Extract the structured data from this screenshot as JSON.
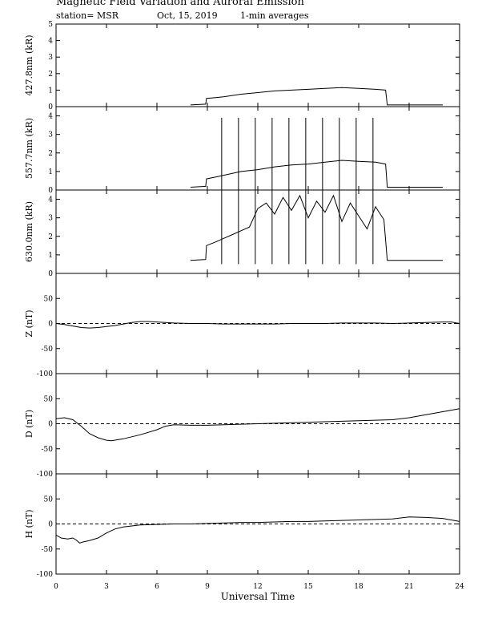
{
  "header": {
    "title": "Magnetic Field Variation and Auroral Emission",
    "station": "station= MSR",
    "date": "Oct, 15, 2019",
    "averaging": "1-min averages"
  },
  "chart_data": {
    "type": "line",
    "xlabel": "Universal Time",
    "xlim": [
      0,
      24
    ],
    "xticks": [
      "0",
      "3",
      "6",
      "9",
      "12",
      "15",
      "18",
      "21",
      "24"
    ],
    "panels": [
      {
        "ylabel": "427.8nm (kR)",
        "ylim": [
          0,
          5
        ],
        "yticks": [
          "0",
          "1",
          "2",
          "3",
          "4",
          "5"
        ],
        "zero_line": false,
        "x": [
          8.0,
          8.9,
          8.95,
          9.5,
          10,
          11,
          12,
          13,
          14,
          15,
          16,
          17,
          18,
          19,
          19.6,
          19.7,
          20.0,
          21,
          22,
          23.0
        ],
        "values": [
          0.1,
          0.15,
          0.5,
          0.55,
          0.6,
          0.75,
          0.85,
          0.95,
          1.0,
          1.05,
          1.1,
          1.15,
          1.1,
          1.05,
          1.0,
          0.1,
          0.1,
          0.1,
          0.1,
          0.1
        ]
      },
      {
        "ylabel": "557.7nm (kR)",
        "ylim": [
          0,
          4.5
        ],
        "yticks": [
          "0",
          "1",
          "2",
          "3",
          "4"
        ],
        "zero_line": false,
        "x": [
          8.0,
          8.9,
          8.95,
          9.5,
          10,
          11,
          12,
          13,
          14,
          15,
          16,
          17,
          18,
          19,
          19.6,
          19.7,
          20.0,
          21,
          22,
          23.0
        ],
        "values": [
          0.15,
          0.2,
          0.6,
          0.7,
          0.8,
          1.0,
          1.1,
          1.25,
          1.35,
          1.4,
          1.5,
          1.6,
          1.55,
          1.5,
          1.4,
          0.15,
          0.15,
          0.15,
          0.15,
          0.15
        ],
        "spikes": [
          9.85,
          10.85,
          11.85,
          12.85,
          13.85,
          14.85,
          15.85,
          16.85,
          17.85,
          18.85
        ],
        "spike_top": 3.9
      },
      {
        "ylabel": "630.0nm (kR)",
        "ylim": [
          0,
          4.5
        ],
        "yticks": [
          "0",
          "1",
          "2",
          "3",
          "4"
        ],
        "zero_line": false,
        "x": [
          8.0,
          8.9,
          8.95,
          9.5,
          10,
          10.5,
          11,
          11.5,
          12,
          12.5,
          13,
          13.5,
          14,
          14.5,
          15,
          15.5,
          16,
          16.5,
          17,
          17.5,
          18,
          18.5,
          19,
          19.5,
          19.7,
          20.0,
          21,
          22,
          23.0
        ],
        "values": [
          0.7,
          0.75,
          1.5,
          1.7,
          1.9,
          2.1,
          2.3,
          2.5,
          3.5,
          3.8,
          3.2,
          4.1,
          3.4,
          4.2,
          3.0,
          3.9,
          3.3,
          4.2,
          2.8,
          3.8,
          3.1,
          2.4,
          3.6,
          2.9,
          0.7,
          0.7,
          0.7,
          0.7,
          0.7
        ],
        "spikes": [
          9.85,
          10.85,
          11.85,
          12.85,
          13.85,
          14.85,
          15.85,
          16.85,
          17.85,
          18.85
        ],
        "spike_top": 4.5,
        "spike_bottom": 0.5
      },
      {
        "ylabel": "Z (nT)",
        "ylim": [
          -100,
          100
        ],
        "yticks": [
          "-100",
          "-50",
          "0",
          "50"
        ],
        "zero_line": true,
        "x": [
          0,
          0.5,
          1,
          1.5,
          2,
          2.5,
          3,
          3.5,
          4,
          4.5,
          5,
          5.5,
          6,
          7,
          8,
          9,
          10,
          11,
          12,
          13,
          14,
          15,
          16,
          17,
          18,
          19,
          20,
          21,
          22,
          23,
          23.5,
          24
        ],
        "values": [
          0,
          -2,
          -5,
          -8,
          -9,
          -8,
          -6,
          -4,
          -1,
          2,
          4,
          4,
          3,
          1,
          0,
          0,
          -1,
          -1,
          -1,
          -1,
          0,
          0,
          0,
          1,
          1,
          1,
          0,
          1,
          2,
          3,
          3,
          0
        ]
      },
      {
        "ylabel": "D (nT)",
        "ylim": [
          -100,
          100
        ],
        "yticks": [
          "-100",
          "-50",
          "0",
          "50"
        ],
        "zero_line": true,
        "x": [
          0,
          0.5,
          1,
          1.5,
          2,
          2.5,
          3,
          3.3,
          4,
          5,
          6,
          6.5,
          7,
          8,
          9,
          10,
          11,
          12,
          13,
          14,
          15,
          16,
          17,
          18,
          19,
          20,
          21,
          22,
          23,
          24
        ],
        "values": [
          10,
          12,
          8,
          -5,
          -20,
          -28,
          -33,
          -34,
          -30,
          -22,
          -12,
          -5,
          -2,
          -3,
          -3,
          -2,
          -1,
          0,
          1,
          2,
          3,
          4,
          5,
          6,
          7,
          8,
          12,
          18,
          24,
          30
        ]
      },
      {
        "ylabel": "H (nT)",
        "ylim": [
          -100,
          100
        ],
        "yticks": [
          "-100",
          "-50",
          "0",
          "50"
        ],
        "zero_line": true,
        "x": [
          0,
          0.3,
          0.7,
          1,
          1.2,
          1.4,
          1.6,
          2,
          2.5,
          3,
          3.5,
          4,
          5,
          6,
          7,
          8,
          9,
          10,
          11,
          12,
          13,
          14,
          15,
          16,
          17,
          18,
          19,
          20,
          21,
          22,
          23,
          24
        ],
        "values": [
          -22,
          -28,
          -30,
          -28,
          -32,
          -38,
          -36,
          -33,
          -28,
          -18,
          -10,
          -6,
          -2,
          -1,
          0,
          0,
          1,
          2,
          3,
          3,
          4,
          5,
          5,
          6,
          7,
          8,
          9,
          10,
          14,
          13,
          11,
          5
        ]
      }
    ]
  }
}
